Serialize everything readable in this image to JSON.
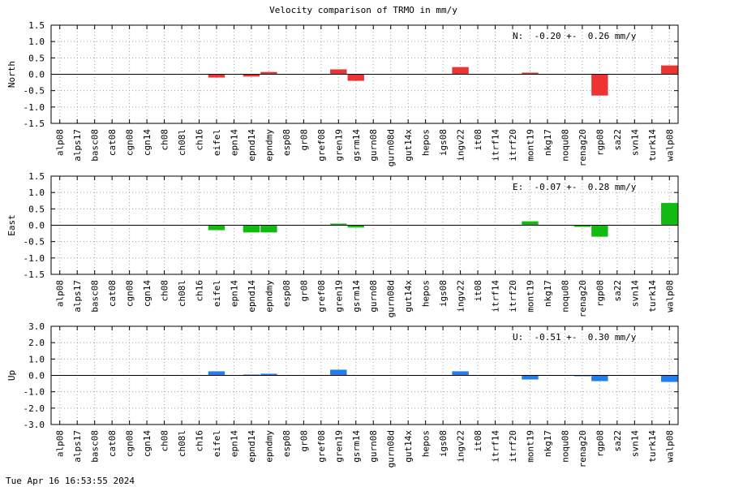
{
  "chart_data": {
    "type": "bar",
    "title": "Velocity comparison of TRMO in mm/y",
    "categories": [
      "alp08",
      "alps17",
      "basc08",
      "cat08",
      "cgn08",
      "cgn14",
      "ch08",
      "ch08l",
      "ch16",
      "eifel",
      "epn14",
      "epnd14",
      "epndmy",
      "esp08",
      "gr08",
      "gref08",
      "gren19",
      "gsrm14",
      "gurn08",
      "gurn08d",
      "gut14x",
      "hepos",
      "igs08",
      "ingv22",
      "it08",
      "itrf14",
      "itrf20",
      "mont19",
      "nkg17",
      "noqu08",
      "renag20",
      "rgp08",
      "sa22",
      "svn14",
      "turk14",
      "walp08"
    ],
    "grid": true,
    "panels": [
      {
        "ylabel": "North",
        "annotation": "N:  -0.20 +-  0.26 mm/y",
        "color": "#ee3333",
        "ylim": [
          -1.5,
          1.5
        ],
        "yticks": [
          -1.5,
          -1.0,
          -0.5,
          0.0,
          0.5,
          1.0,
          1.5
        ],
        "yticklabels": [
          "-1.5",
          "-1.0",
          "-0.5",
          "0.0",
          "0.5",
          "1.0",
          "1.5"
        ],
        "values": [
          null,
          null,
          null,
          null,
          null,
          null,
          null,
          null,
          null,
          -0.1,
          null,
          -0.07,
          0.07,
          null,
          null,
          null,
          0.15,
          -0.2,
          null,
          null,
          null,
          null,
          null,
          0.22,
          null,
          null,
          null,
          0.05,
          null,
          null,
          null,
          -0.65,
          null,
          null,
          null,
          0.27
        ]
      },
      {
        "ylabel": "East",
        "annotation": "E:  -0.07 +-  0.28 mm/y",
        "color": "#11bb11",
        "ylim": [
          -1.5,
          1.5
        ],
        "yticks": [
          -1.5,
          -1.0,
          -0.5,
          0.0,
          0.5,
          1.0,
          1.5
        ],
        "yticklabels": [
          "-1.5",
          "-1.0",
          "-0.5",
          "0.0",
          "0.5",
          "1.0",
          "1.5"
        ],
        "values": [
          null,
          null,
          null,
          null,
          null,
          null,
          null,
          null,
          null,
          -0.15,
          null,
          -0.22,
          -0.22,
          null,
          null,
          null,
          0.05,
          -0.07,
          null,
          null,
          null,
          null,
          null,
          null,
          null,
          null,
          null,
          0.12,
          null,
          null,
          -0.05,
          -0.35,
          null,
          null,
          null,
          0.68
        ]
      },
      {
        "ylabel": "Up",
        "annotation": "U:  -0.51 +-  0.30 mm/y",
        "color": "#1e7fee",
        "ylim": [
          -3.0,
          3.0
        ],
        "yticks": [
          -3.0,
          -2.0,
          -1.0,
          0.0,
          1.0,
          2.0,
          3.0
        ],
        "yticklabels": [
          "-3.0",
          "-2.0",
          "-1.0",
          "0.0",
          "1.0",
          "2.0",
          "3.0"
        ],
        "values": [
          null,
          null,
          null,
          null,
          null,
          null,
          null,
          null,
          null,
          0.25,
          null,
          0.05,
          0.1,
          null,
          null,
          null,
          0.35,
          null,
          null,
          null,
          null,
          null,
          null,
          0.25,
          null,
          null,
          null,
          -0.25,
          null,
          null,
          -0.05,
          -0.35,
          null,
          null,
          null,
          -0.4
        ]
      }
    ]
  },
  "footer": {
    "timestamp": "Tue Apr 16 16:53:55 2024"
  }
}
